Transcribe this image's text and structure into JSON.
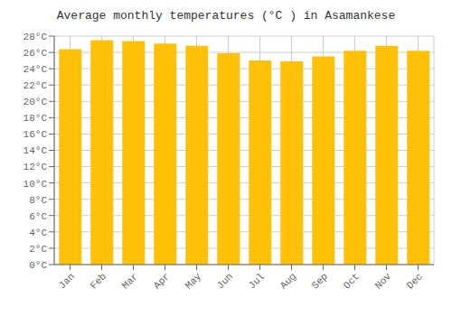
{
  "chart_data": {
    "type": "bar",
    "title": "Average monthly temperatures (°C ) in Asamankese",
    "categories": [
      "Jan",
      "Feb",
      "Mar",
      "Apr",
      "May",
      "Jun",
      "Jul",
      "Aug",
      "Sep",
      "Oct",
      "Nov",
      "Dec"
    ],
    "values": [
      26.4,
      27.5,
      27.4,
      27.1,
      26.8,
      25.9,
      25.0,
      24.9,
      25.5,
      26.2,
      26.8,
      26.2
    ],
    "color": "#FFC107",
    "ylim": [
      0,
      28
    ],
    "yticks": [
      {
        "value": 0,
        "label": "0°C"
      },
      {
        "value": 2,
        "label": "2°C"
      },
      {
        "value": 4,
        "label": "4°C"
      },
      {
        "value": 6,
        "label": "6°C"
      },
      {
        "value": 8,
        "label": "8°C"
      },
      {
        "value": 10,
        "label": "10°C"
      },
      {
        "value": 12,
        "label": "12°C"
      },
      {
        "value": 14,
        "label": "14°C"
      },
      {
        "value": 16,
        "label": "16°C"
      },
      {
        "value": 18,
        "label": "18°C"
      },
      {
        "value": 20,
        "label": "20°C"
      },
      {
        "value": 22,
        "label": "22°C"
      },
      {
        "value": 24,
        "label": "24°C"
      },
      {
        "value": 26,
        "label": "26°C"
      },
      {
        "value": 28,
        "label": "28°C"
      }
    ],
    "grid": true
  }
}
